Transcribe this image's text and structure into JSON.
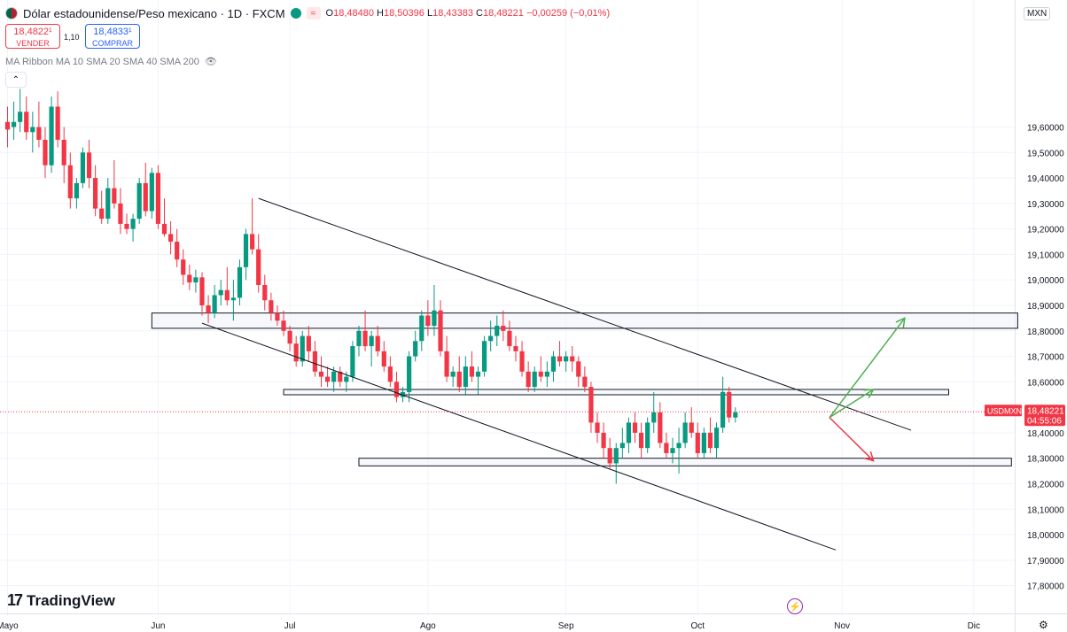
{
  "header": {
    "title": "Dólar estadounidense/Peso mexicano · 1D · FXCM",
    "ohlc": [
      {
        "k": "O",
        "v": "18,48480"
      },
      {
        "k": "H",
        "v": "18,50396"
      },
      {
        "k": "L",
        "v": "18,43383"
      },
      {
        "k": "C",
        "v": "18,48221"
      },
      {
        "k": "",
        "v": "−0,00259 (−0,01%)"
      }
    ]
  },
  "trade": {
    "sell_price": "18,4822¹",
    "sell_label": "VENDER",
    "buy_price": "18,4833¹",
    "buy_label": "COMPRAR",
    "spread": "1,10"
  },
  "indicator": {
    "label": "MA Ribbon MA 10 SMA 20 SMA 40 SMA 200"
  },
  "currency_label": "MXN",
  "logo_text": "TradingView",
  "price_tag": {
    "symbol": "USDMXN",
    "price": "18,48221",
    "countdown": "04:55:06"
  },
  "colors": {
    "up": "#089981",
    "down": "#f23645",
    "grid": "#f0f3fa",
    "line": "#131722",
    "green_arrow": "#4caf50",
    "red_arrow": "#f23645"
  },
  "chart_data": {
    "type": "candlestick",
    "ylim": [
      17.75,
      20.05
    ],
    "y_ticks": [
      {
        "v": 19.6,
        "label": "19,60000"
      },
      {
        "v": 19.5,
        "label": "19,50000"
      },
      {
        "v": 19.4,
        "label": "19,40000"
      },
      {
        "v": 19.3,
        "label": "19,30000"
      },
      {
        "v": 19.2,
        "label": "19,20000"
      },
      {
        "v": 19.1,
        "label": "19,10000"
      },
      {
        "v": 19.0,
        "label": "19,00000"
      },
      {
        "v": 18.9,
        "label": "18,90000"
      },
      {
        "v": 18.8,
        "label": "18,80000"
      },
      {
        "v": 18.7,
        "label": "18,70000"
      },
      {
        "v": 18.6,
        "label": "18,60000"
      },
      {
        "v": 18.4,
        "label": "18,40000"
      },
      {
        "v": 18.3,
        "label": "18,30000"
      },
      {
        "v": 18.2,
        "label": "18,20000"
      },
      {
        "v": 18.1,
        "label": "18,10000"
      },
      {
        "v": 18.0,
        "label": "18,00000"
      },
      {
        "v": 17.9,
        "label": "17,90000"
      },
      {
        "v": 17.8,
        "label": "17,80000"
      }
    ],
    "x_labels": [
      {
        "i": 0,
        "label": "Mayo"
      },
      {
        "i": 24,
        "label": "Jun"
      },
      {
        "i": 45,
        "label": "Jul"
      },
      {
        "i": 67,
        "label": "Ago"
      },
      {
        "i": 89,
        "label": "Sep"
      },
      {
        "i": 110,
        "label": "Oct"
      },
      {
        "i": 133,
        "label": "Nov"
      },
      {
        "i": 154,
        "label": "Dic"
      }
    ],
    "candles": [
      [
        19.62,
        19.68,
        19.52,
        19.59
      ],
      [
        19.6,
        19.7,
        19.55,
        19.62
      ],
      [
        19.62,
        19.75,
        19.58,
        19.66
      ],
      [
        19.66,
        19.72,
        19.55,
        19.58
      ],
      [
        19.58,
        19.66,
        19.5,
        19.6
      ],
      [
        19.6,
        19.7,
        19.52,
        19.55
      ],
      [
        19.55,
        19.6,
        19.4,
        19.45
      ],
      [
        19.45,
        19.72,
        19.42,
        19.68
      ],
      [
        19.68,
        19.74,
        19.52,
        19.55
      ],
      [
        19.55,
        19.6,
        19.38,
        19.45
      ],
      [
        19.45,
        19.5,
        19.28,
        19.32
      ],
      [
        19.32,
        19.4,
        19.28,
        19.38
      ],
      [
        19.38,
        19.52,
        19.36,
        19.5
      ],
      [
        19.5,
        19.55,
        19.36,
        19.4
      ],
      [
        19.4,
        19.45,
        19.25,
        19.28
      ],
      [
        19.28,
        19.35,
        19.22,
        19.24
      ],
      [
        19.24,
        19.4,
        19.22,
        19.36
      ],
      [
        19.36,
        19.47,
        19.28,
        19.3
      ],
      [
        19.3,
        19.36,
        19.18,
        19.22
      ],
      [
        19.22,
        19.26,
        19.18,
        19.2
      ],
      [
        19.2,
        19.26,
        19.15,
        19.24
      ],
      [
        19.24,
        19.4,
        19.22,
        19.38
      ],
      [
        19.38,
        19.46,
        19.25,
        19.27
      ],
      [
        19.27,
        19.44,
        19.24,
        19.42
      ],
      [
        19.42,
        19.45,
        19.2,
        19.22
      ],
      [
        19.22,
        19.32,
        19.17,
        19.18
      ],
      [
        19.18,
        19.23,
        19.1,
        19.15
      ],
      [
        19.15,
        19.2,
        19.05,
        19.08
      ],
      [
        19.08,
        19.12,
        18.98,
        19.02
      ],
      [
        19.02,
        19.06,
        18.96,
        18.99
      ],
      [
        18.99,
        19.04,
        18.95,
        19.01
      ],
      [
        19.01,
        19.03,
        18.86,
        18.9
      ],
      [
        18.9,
        18.94,
        18.83,
        18.87
      ],
      [
        18.87,
        18.98,
        18.85,
        18.94
      ],
      [
        18.94,
        19.0,
        18.9,
        18.96
      ],
      [
        18.96,
        19.05,
        18.9,
        18.92
      ],
      [
        18.92,
        19.0,
        18.84,
        18.93
      ],
      [
        18.93,
        19.08,
        18.9,
        19.05
      ],
      [
        19.05,
        19.2,
        19.0,
        19.18
      ],
      [
        19.18,
        19.32,
        19.1,
        19.12
      ],
      [
        19.12,
        19.18,
        18.95,
        18.98
      ],
      [
        18.98,
        19.02,
        18.88,
        18.92
      ],
      [
        18.92,
        18.95,
        18.84,
        18.87
      ],
      [
        18.87,
        18.9,
        18.82,
        18.84
      ],
      [
        18.84,
        18.88,
        18.78,
        18.8
      ],
      [
        18.8,
        18.82,
        18.72,
        18.75
      ],
      [
        18.75,
        18.78,
        18.66,
        18.68
      ],
      [
        18.68,
        18.8,
        18.66,
        18.78
      ],
      [
        18.78,
        18.82,
        18.68,
        18.72
      ],
      [
        18.72,
        18.76,
        18.62,
        18.64
      ],
      [
        18.64,
        18.7,
        18.58,
        18.62
      ],
      [
        18.62,
        18.66,
        18.58,
        18.6
      ],
      [
        18.6,
        18.66,
        18.56,
        18.64
      ],
      [
        18.64,
        18.66,
        18.58,
        18.6
      ],
      [
        18.6,
        18.64,
        18.56,
        18.62
      ],
      [
        18.62,
        18.76,
        18.6,
        18.74
      ],
      [
        18.74,
        18.82,
        18.7,
        18.8
      ],
      [
        18.8,
        18.88,
        18.72,
        18.74
      ],
      [
        18.74,
        18.8,
        18.66,
        18.78
      ],
      [
        18.78,
        18.82,
        18.7,
        18.72
      ],
      [
        18.72,
        18.76,
        18.64,
        18.66
      ],
      [
        18.66,
        18.7,
        18.58,
        18.6
      ],
      [
        18.6,
        18.64,
        18.52,
        18.54
      ],
      [
        18.54,
        18.58,
        18.52,
        18.56
      ],
      [
        18.56,
        18.72,
        18.52,
        18.7
      ],
      [
        18.7,
        18.8,
        18.68,
        18.76
      ],
      [
        18.76,
        18.88,
        18.72,
        18.86
      ],
      [
        18.86,
        18.92,
        18.78,
        18.82
      ],
      [
        18.82,
        18.98,
        18.78,
        18.88
      ],
      [
        18.88,
        18.92,
        18.7,
        18.72
      ],
      [
        18.72,
        18.78,
        18.6,
        18.62
      ],
      [
        18.62,
        18.66,
        18.58,
        18.64
      ],
      [
        18.64,
        18.7,
        18.56,
        18.58
      ],
      [
        18.58,
        18.7,
        18.55,
        18.66
      ],
      [
        18.66,
        18.72,
        18.6,
        18.62
      ],
      [
        18.62,
        18.66,
        18.55,
        18.64
      ],
      [
        18.64,
        18.78,
        18.62,
        18.76
      ],
      [
        18.76,
        18.84,
        18.72,
        18.78
      ],
      [
        18.78,
        18.86,
        18.74,
        18.82
      ],
      [
        18.82,
        18.88,
        18.76,
        18.8
      ],
      [
        18.8,
        18.84,
        18.72,
        18.74
      ],
      [
        18.74,
        18.78,
        18.68,
        18.72
      ],
      [
        18.72,
        18.76,
        18.62,
        18.64
      ],
      [
        18.64,
        18.68,
        18.56,
        18.58
      ],
      [
        18.58,
        18.66,
        18.56,
        18.64
      ],
      [
        18.64,
        18.7,
        18.6,
        18.62
      ],
      [
        18.62,
        18.68,
        18.58,
        18.64
      ],
      [
        18.64,
        18.72,
        18.6,
        18.7
      ],
      [
        18.7,
        18.76,
        18.66,
        18.68
      ],
      [
        18.68,
        18.72,
        18.64,
        18.7
      ],
      [
        18.7,
        18.74,
        18.64,
        18.68
      ],
      [
        18.68,
        18.7,
        18.58,
        18.62
      ],
      [
        18.62,
        18.66,
        18.56,
        18.58
      ],
      [
        18.58,
        18.6,
        18.4,
        18.44
      ],
      [
        18.44,
        18.48,
        18.36,
        18.4
      ],
      [
        18.4,
        18.44,
        18.3,
        18.34
      ],
      [
        18.34,
        18.38,
        18.26,
        18.28
      ],
      [
        18.28,
        18.36,
        18.2,
        18.34
      ],
      [
        18.34,
        18.42,
        18.3,
        18.36
      ],
      [
        18.36,
        18.46,
        18.32,
        18.44
      ],
      [
        18.44,
        18.48,
        18.36,
        18.4
      ],
      [
        18.4,
        18.44,
        18.3,
        18.34
      ],
      [
        18.34,
        18.46,
        18.32,
        18.44
      ],
      [
        18.44,
        18.56,
        18.4,
        18.48
      ],
      [
        18.48,
        18.52,
        18.34,
        18.36
      ],
      [
        18.36,
        18.4,
        18.3,
        18.32
      ],
      [
        18.32,
        18.38,
        18.28,
        18.34
      ],
      [
        18.34,
        18.42,
        18.24,
        18.36
      ],
      [
        18.36,
        18.48,
        18.34,
        18.44
      ],
      [
        18.44,
        18.5,
        18.38,
        18.4
      ],
      [
        18.4,
        18.44,
        18.3,
        18.32
      ],
      [
        18.32,
        18.42,
        18.3,
        18.4
      ],
      [
        18.4,
        18.46,
        18.32,
        18.34
      ],
      [
        18.34,
        18.44,
        18.3,
        18.42
      ],
      [
        18.42,
        18.62,
        18.4,
        18.56
      ],
      [
        18.56,
        18.58,
        18.44,
        18.46
      ],
      [
        18.46,
        18.5,
        18.44,
        18.48
      ]
    ],
    "trendlines": [
      {
        "from": [
          40,
          19.32
        ],
        "to": [
          144,
          18.41
        ],
        "name": "upper-channel"
      },
      {
        "from": [
          31,
          18.83
        ],
        "to": [
          132,
          17.94
        ],
        "name": "lower-channel"
      }
    ],
    "zones": [
      {
        "from_i": 23,
        "to_i": 161,
        "top": 18.87,
        "bottom": 18.81,
        "name": "resistance-zone"
      },
      {
        "from_i": 44,
        "to_i": 150,
        "top": 18.57,
        "bottom": 18.55,
        "name": "mid-zone"
      },
      {
        "from_i": 56,
        "to_i": 160,
        "top": 18.3,
        "bottom": 18.27,
        "name": "support-zone"
      }
    ],
    "arrows": [
      {
        "from": [
          131,
          18.46
        ],
        "to": [
          143,
          18.85
        ],
        "color": "green",
        "name": "bullish-arrow-long"
      },
      {
        "from": [
          131,
          18.46
        ],
        "to": [
          138,
          18.57
        ],
        "color": "green",
        "name": "bullish-arrow-short"
      },
      {
        "from": [
          131,
          18.46
        ],
        "to": [
          138,
          18.29
        ],
        "color": "red",
        "name": "bearish-arrow"
      }
    ],
    "last_price": 18.48221
  }
}
